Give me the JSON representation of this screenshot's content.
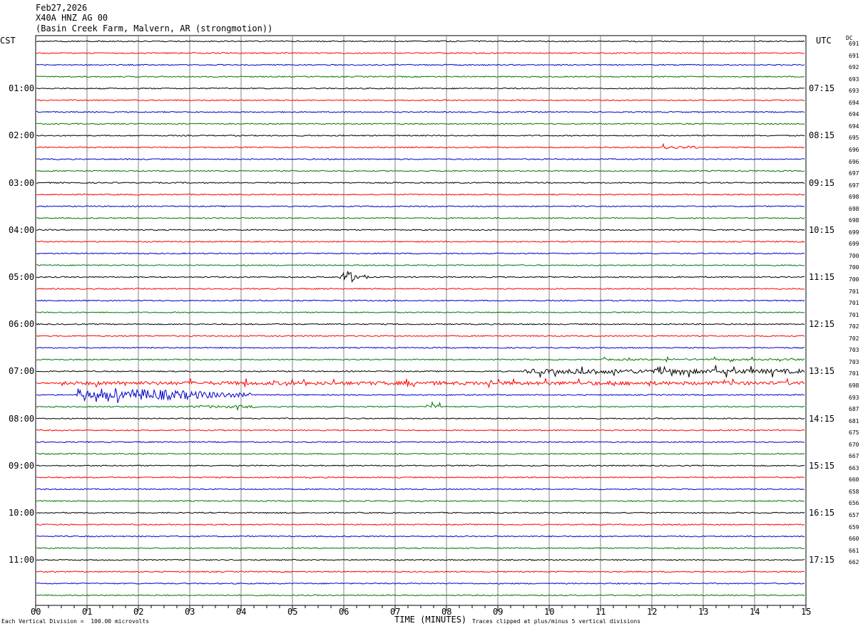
{
  "header": {
    "date": "Feb27,2026",
    "station": "X40A HNZ AG 00",
    "location": "(Basin Creek Farm, Malvern, AR (strongmotion))"
  },
  "left_zone_label": "CST",
  "right_zone_label": "UTC",
  "dc_label": "DC",
  "footer": {
    "scale_note": "Each Vertical Division =  100.00 microvolts",
    "xlabel": "TIME (MINUTES)",
    "clip_note": "Traces clipped at plus/minus 5 vertical divisions"
  },
  "colors": {
    "trace_cycle": [
      "#000000",
      "#ff0000",
      "#0000cc",
      "#007700"
    ],
    "grid": "#808080"
  },
  "chart_data": {
    "type": "line",
    "x_ticks": [
      "00",
      "01",
      "02",
      "03",
      "04",
      "05",
      "06",
      "07",
      "08",
      "09",
      "10",
      "11",
      "12",
      "13",
      "14",
      "15"
    ],
    "xlim": [
      0,
      15
    ],
    "left_hour_labels": [
      "01:00",
      "02:00",
      "03:00",
      "04:00",
      "05:00",
      "06:00",
      "07:00",
      "08:00",
      "09:00",
      "10:00",
      "11:00"
    ],
    "right_hour_labels": [
      "07:15",
      "08:15",
      "09:15",
      "10:15",
      "11:15",
      "12:15",
      "13:15",
      "14:15",
      "15:15",
      "16:15",
      "17:15"
    ],
    "dc_values": [
      "691",
      "691",
      "692",
      "693",
      "693",
      "694",
      "694",
      "694",
      "695",
      "696",
      "696",
      "697",
      "697",
      "698",
      "698",
      "698",
      "699",
      "699",
      "700",
      "700",
      "700",
      "701",
      "701",
      "701",
      "702",
      "702",
      "703",
      "703",
      "701",
      "698",
      "693",
      "687",
      "681",
      "675",
      "670",
      "667",
      "663",
      "660",
      "658",
      "656",
      "657",
      "659",
      "660",
      "661",
      "662"
    ],
    "trace_count": 48,
    "events": [
      {
        "trace": 20,
        "start_min": 5.9,
        "end_min": 6.5,
        "amp": 10
      },
      {
        "trace": 29,
        "start_min": 0.5,
        "end_min": 15,
        "amp": 4
      },
      {
        "trace": 30,
        "start_min": 0.8,
        "end_min": 4.2,
        "amp": 12
      },
      {
        "trace": 28,
        "start_min": 9.5,
        "end_min": 15,
        "amp": 5
      },
      {
        "trace": 31,
        "start_min": 7.6,
        "end_min": 7.9,
        "amp": 4
      },
      {
        "trace": 31,
        "start_min": 3.0,
        "end_min": 4.3,
        "amp": 3
      },
      {
        "trace": 9,
        "start_min": 12.1,
        "end_min": 12.9,
        "amp": 3
      },
      {
        "trace": 27,
        "start_min": 11.0,
        "end_min": 15,
        "amp": 2
      }
    ]
  }
}
